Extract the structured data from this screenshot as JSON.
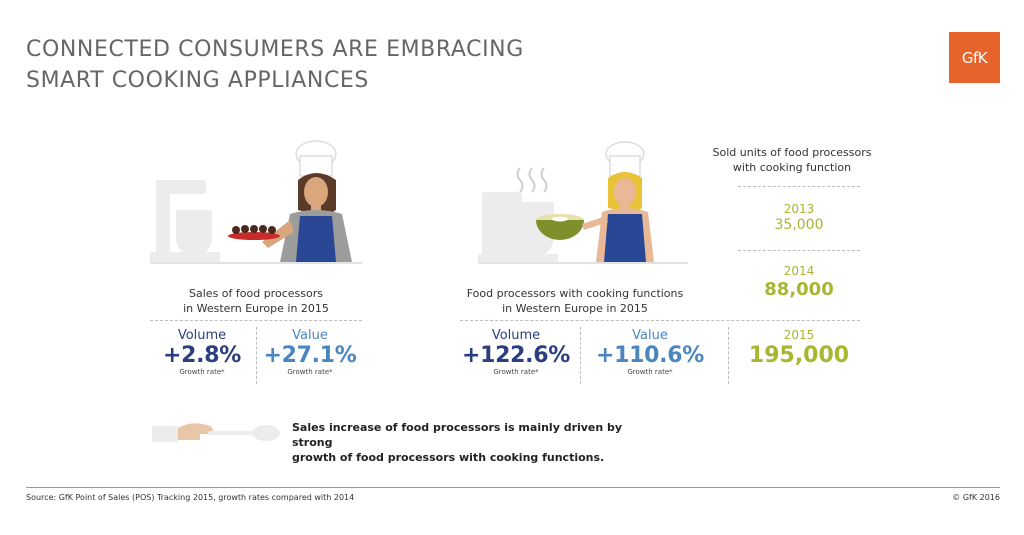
{
  "header": {
    "title_line1": "CONNECTED CONSUMERS ARE EMBRACING",
    "title_line2": "SMART COOKING APPLIANCES",
    "logo_text": "GfK"
  },
  "left_panel": {
    "caption_line1": "Sales of food processors",
    "caption_line2": "in Western Europe in 2015",
    "volume": {
      "label": "Volume",
      "value": "+2.8%",
      "note": "Growth rate*"
    },
    "value": {
      "label": "Value",
      "value": "+27.1%",
      "note": "Growth rate*"
    }
  },
  "middle_panel": {
    "caption_line1": "Food processors with cooking functions",
    "caption_line2": "in Western Europe in 2015",
    "volume": {
      "label": "Volume",
      "value": "+122.6%",
      "note": "Growth rate*"
    },
    "value": {
      "label": "Value",
      "value": "+110.6%",
      "note": "Growth rate*"
    }
  },
  "units_panel": {
    "heading_line1": "Sold units of food processors",
    "heading_line2": "with cooking function",
    "years": [
      {
        "year": "2013",
        "units": "35,000"
      },
      {
        "year": "2014",
        "units": "88,000"
      },
      {
        "year": "2015",
        "units": "195,000"
      }
    ]
  },
  "summary": {
    "line1": "Sales increase of food processors is mainly driven by strong",
    "line2": "growth of food processors with cooking functions."
  },
  "footer": {
    "source": "Source: GfK Point of Sales (POS) Tracking 2015, growth rates compared with 2014",
    "copyright": "© GfK 2016"
  },
  "colors": {
    "navy": "#2b3f7f",
    "steel_blue": "#4b86bf",
    "lime": "#a8b631",
    "gfk_orange": "#e6632b"
  }
}
